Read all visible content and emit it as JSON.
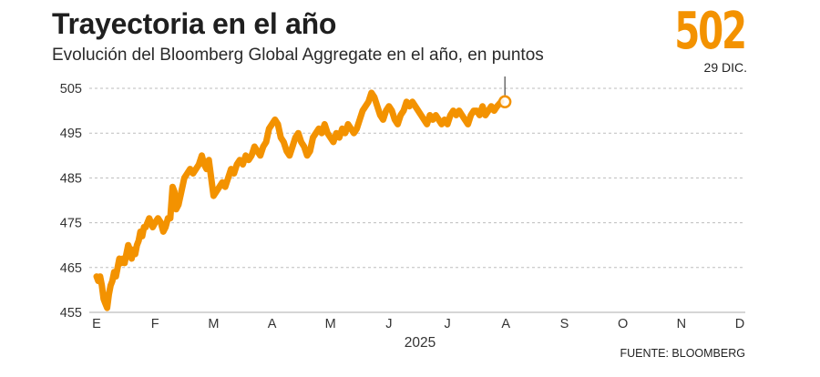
{
  "header": {
    "title": "Trayectoria en el año",
    "subtitle": "Evolución del Bloomberg Global Aggregate en el año, en puntos"
  },
  "highlight": {
    "value": "502",
    "date_label": "29 DIC."
  },
  "source": "FUENTE: BLOOMBERG",
  "colors": {
    "accent": "#f39200",
    "grid": "#bdbdbd",
    "text": "#222222"
  },
  "chart_data": {
    "type": "line",
    "title": "Trayectoria en el año",
    "subtitle": "Evolución del Bloomberg Global Aggregate en el año, en puntos",
    "xlabel": "2025",
    "ylabel": "",
    "ylim": [
      455,
      505
    ],
    "yticks": [
      455,
      465,
      475,
      485,
      495,
      505
    ],
    "grid": true,
    "x_ticks": [
      "E",
      "F",
      "M",
      "A",
      "M",
      "J",
      "J",
      "A",
      "S",
      "O",
      "N",
      "D"
    ],
    "series": [
      {
        "values": [
          [
            0,
            463
          ],
          [
            0.03,
            462
          ],
          [
            0.06,
            463
          ],
          [
            0.09,
            461
          ],
          [
            0.12,
            458
          ],
          [
            0.15,
            457
          ],
          [
            0.18,
            456
          ],
          [
            0.21,
            459
          ],
          [
            0.24,
            461
          ],
          [
            0.27,
            462
          ],
          [
            0.3,
            464
          ],
          [
            0.33,
            463
          ],
          [
            0.36,
            465
          ],
          [
            0.39,
            467
          ],
          [
            0.42,
            466
          ],
          [
            0.45,
            467
          ],
          [
            0.48,
            466
          ],
          [
            0.51,
            468
          ],
          [
            0.54,
            470
          ],
          [
            0.57,
            469
          ],
          [
            0.6,
            467
          ],
          [
            0.63,
            469
          ],
          [
            0.66,
            468
          ],
          [
            0.69,
            470
          ],
          [
            0.72,
            471
          ],
          [
            0.75,
            473
          ],
          [
            0.78,
            472
          ],
          [
            0.81,
            474
          ],
          [
            0.84,
            474
          ],
          [
            0.87,
            475
          ],
          [
            0.9,
            476
          ],
          [
            0.93,
            475
          ],
          [
            0.96,
            474
          ],
          [
            1.0,
            475
          ],
          [
            1.05,
            476
          ],
          [
            1.1,
            475
          ],
          [
            1.14,
            473
          ],
          [
            1.18,
            474
          ],
          [
            1.22,
            476
          ],
          [
            1.26,
            476
          ],
          [
            1.3,
            483
          ],
          [
            1.33,
            482
          ],
          [
            1.36,
            478
          ],
          [
            1.4,
            479
          ],
          [
            1.45,
            482
          ],
          [
            1.5,
            485
          ],
          [
            1.55,
            486
          ],
          [
            1.6,
            487
          ],
          [
            1.65,
            486
          ],
          [
            1.7,
            487
          ],
          [
            1.75,
            488
          ],
          [
            1.8,
            490
          ],
          [
            1.84,
            488
          ],
          [
            1.88,
            487
          ],
          [
            1.92,
            489
          ],
          [
            1.96,
            485
          ],
          [
            2.0,
            481
          ],
          [
            2.05,
            482
          ],
          [
            2.1,
            483
          ],
          [
            2.15,
            484
          ],
          [
            2.2,
            483
          ],
          [
            2.25,
            485
          ],
          [
            2.3,
            487
          ],
          [
            2.35,
            486
          ],
          [
            2.4,
            488
          ],
          [
            2.45,
            489
          ],
          [
            2.5,
            488
          ],
          [
            2.55,
            490
          ],
          [
            2.6,
            489
          ],
          [
            2.65,
            490
          ],
          [
            2.7,
            492
          ],
          [
            2.75,
            491
          ],
          [
            2.8,
            490
          ],
          [
            2.85,
            492
          ],
          [
            2.9,
            493
          ],
          [
            2.95,
            496
          ],
          [
            3.0,
            497
          ],
          [
            3.05,
            498
          ],
          [
            3.1,
            497
          ],
          [
            3.15,
            494
          ],
          [
            3.2,
            493
          ],
          [
            3.25,
            491
          ],
          [
            3.3,
            490
          ],
          [
            3.35,
            492
          ],
          [
            3.4,
            494
          ],
          [
            3.45,
            495
          ],
          [
            3.5,
            493
          ],
          [
            3.55,
            492
          ],
          [
            3.6,
            490
          ],
          [
            3.65,
            491
          ],
          [
            3.7,
            494
          ],
          [
            3.75,
            495
          ],
          [
            3.8,
            496
          ],
          [
            3.85,
            495
          ],
          [
            3.9,
            497
          ],
          [
            3.95,
            495
          ],
          [
            4.0,
            494
          ],
          [
            4.05,
            493
          ],
          [
            4.1,
            495
          ],
          [
            4.15,
            494
          ],
          [
            4.2,
            496
          ],
          [
            4.25,
            495
          ],
          [
            4.3,
            497
          ],
          [
            4.35,
            496
          ],
          [
            4.4,
            495
          ],
          [
            4.45,
            496
          ],
          [
            4.5,
            498
          ],
          [
            4.55,
            500
          ],
          [
            4.6,
            501
          ],
          [
            4.65,
            502
          ],
          [
            4.7,
            504
          ],
          [
            4.75,
            503
          ],
          [
            4.8,
            501
          ],
          [
            4.85,
            499
          ],
          [
            4.9,
            498
          ],
          [
            4.95,
            500
          ],
          [
            5.0,
            501
          ],
          [
            5.05,
            500
          ],
          [
            5.1,
            498
          ],
          [
            5.15,
            497
          ],
          [
            5.2,
            499
          ],
          [
            5.25,
            500
          ],
          [
            5.3,
            502
          ],
          [
            5.35,
            501
          ],
          [
            5.4,
            502
          ],
          [
            5.45,
            501
          ],
          [
            5.5,
            500
          ],
          [
            5.55,
            499
          ],
          [
            5.6,
            498
          ],
          [
            5.65,
            497
          ],
          [
            5.7,
            499
          ],
          [
            5.75,
            498
          ],
          [
            5.8,
            499
          ],
          [
            5.85,
            498
          ],
          [
            5.9,
            497
          ],
          [
            5.95,
            498
          ],
          [
            6.0,
            497
          ],
          [
            6.05,
            499
          ],
          [
            6.1,
            500
          ],
          [
            6.15,
            499
          ],
          [
            6.2,
            500
          ],
          [
            6.25,
            499
          ],
          [
            6.3,
            498
          ],
          [
            6.35,
            497
          ],
          [
            6.4,
            499
          ],
          [
            6.45,
            500
          ],
          [
            6.5,
            500
          ],
          [
            6.55,
            499
          ],
          [
            6.6,
            501
          ],
          [
            6.65,
            499
          ],
          [
            6.7,
            500
          ],
          [
            6.75,
            501
          ],
          [
            6.8,
            500
          ],
          [
            6.85,
            501
          ],
          [
            6.92,
            502
          ]
        ]
      }
    ]
  }
}
